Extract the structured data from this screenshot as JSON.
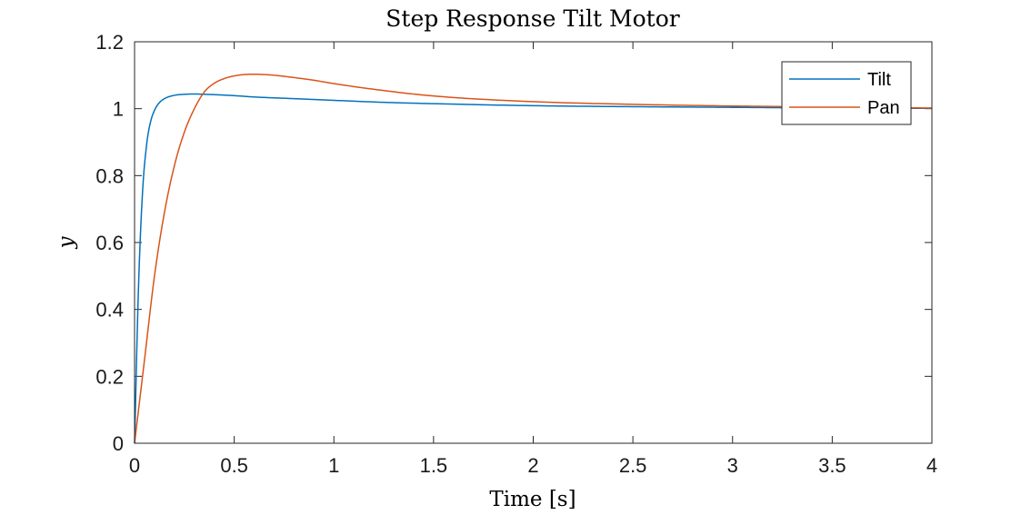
{
  "chart_data": {
    "type": "line",
    "title": "Step Response Tilt Motor",
    "xlabel": "Time [s]",
    "ylabel": "y",
    "xlim": [
      0,
      4
    ],
    "ylim": [
      0,
      1.2
    ],
    "xticks": [
      0,
      0.5,
      1,
      1.5,
      2,
      2.5,
      3,
      3.5,
      4
    ],
    "xtick_labels": [
      "0",
      "0.5",
      "1",
      "1.5",
      "2",
      "2.5",
      "3",
      "3.5",
      "4"
    ],
    "yticks": [
      0,
      0.2,
      0.4,
      0.6,
      0.8,
      1,
      1.2
    ],
    "ytick_labels": [
      "0",
      "0.2",
      "0.4",
      "0.6",
      "0.8",
      "1",
      "1.2"
    ],
    "grid": false,
    "legend_position": "top-right",
    "series": [
      {
        "name": "Tilt",
        "color": "#0072BD",
        "x": [
          0,
          0.02,
          0.04,
          0.06,
          0.08,
          0.1,
          0.12,
          0.15,
          0.2,
          0.25,
          0.3,
          0.35,
          0.4,
          0.5,
          0.6,
          0.8,
          1.0,
          1.25,
          1.5,
          2.0,
          2.5,
          3.0,
          3.5,
          4.0
        ],
        "y": [
          0,
          0.47,
          0.75,
          0.89,
          0.96,
          0.995,
          1.015,
          1.03,
          1.04,
          1.043,
          1.044,
          1.043,
          1.042,
          1.039,
          1.035,
          1.03,
          1.025,
          1.019,
          1.015,
          1.009,
          1.006,
          1.004,
          1.002,
          1.001
        ]
      },
      {
        "name": "Pan",
        "color": "#D95319",
        "x": [
          0,
          0.05,
          0.1,
          0.15,
          0.2,
          0.25,
          0.3,
          0.35,
          0.4,
          0.45,
          0.5,
          0.55,
          0.6,
          0.65,
          0.7,
          0.8,
          0.9,
          1.0,
          1.2,
          1.5,
          2.0,
          2.5,
          3.0,
          3.5,
          4.0
        ],
        "y": [
          0,
          0.25,
          0.5,
          0.69,
          0.83,
          0.93,
          1.0,
          1.05,
          1.076,
          1.09,
          1.098,
          1.102,
          1.103,
          1.102,
          1.1,
          1.093,
          1.085,
          1.075,
          1.058,
          1.038,
          1.021,
          1.013,
          1.008,
          1.005,
          1.002
        ]
      }
    ]
  }
}
